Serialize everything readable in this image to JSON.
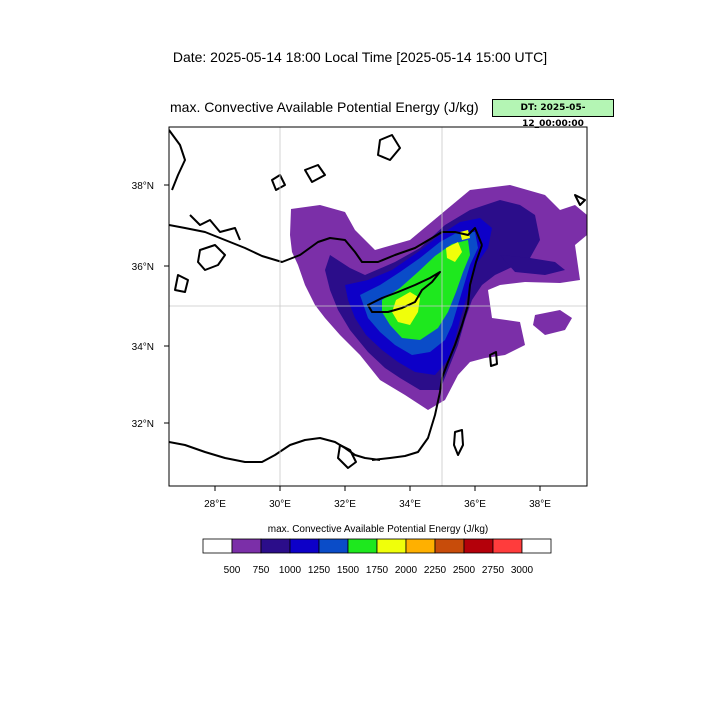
{
  "header": {
    "date_line": "Date: 2025-05-14  18:00 Local Time [2025-05-14  15:00 UTC]"
  },
  "map": {
    "title": "max. Convective Available Potential Energy   (J/kg)",
    "dt_badge": "DT: 2025-05-12_00:00:00",
    "lon_ticks": [
      "28°E",
      "30°E",
      "32°E",
      "34°E",
      "36°E",
      "38°E"
    ],
    "lat_ticks": [
      "38°N",
      "36°N",
      "34°N",
      "32°N"
    ],
    "lon_range": [
      26.6,
      39.4
    ],
    "lat_range": [
      30.4,
      39.4
    ],
    "gridlines": {
      "lon": [
        30,
        35
      ],
      "lat": [
        35
      ]
    }
  },
  "colorbar": {
    "title": "max. Convective Available Potential Energy  (J/kg)",
    "levels": [
      "500",
      "750",
      "1000",
      "1250",
      "1500",
      "1750",
      "2000",
      "2250",
      "2500",
      "2750",
      "3000"
    ],
    "colors": [
      "#ffffff",
      "#7b2fa8",
      "#2b0d8a",
      "#0d00c8",
      "#0a4cc8",
      "#1ee81e",
      "#f0ff0a",
      "#ffb000",
      "#c84c0a",
      "#b4000a",
      "#ff3c3c",
      "#ffffff"
    ]
  }
}
